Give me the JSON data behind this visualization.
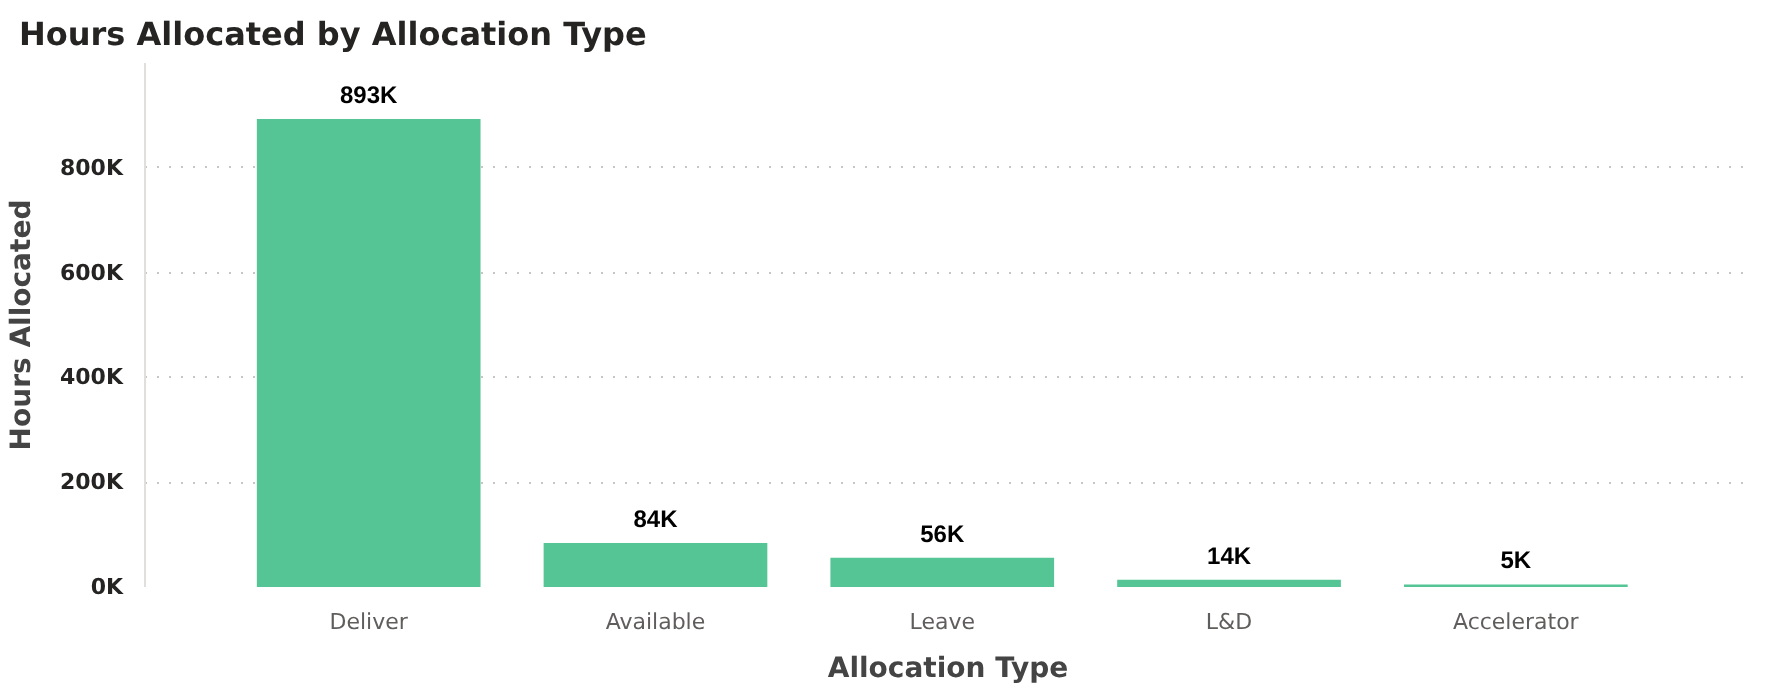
{
  "chart_data": {
    "type": "bar",
    "title": "Hours Allocated by Allocation Type",
    "xlabel": "Allocation Type",
    "ylabel": "Hours Allocated",
    "categories": [
      "Deliver",
      "Available",
      "Leave",
      "L&D",
      "Accelerator"
    ],
    "values": [
      893000,
      84000,
      56000,
      14000,
      5000
    ],
    "value_labels": [
      "893K",
      "84K",
      "56K",
      "14K",
      "5K"
    ],
    "color": "#55c595",
    "ylim": [
      0,
      1000000
    ],
    "yticks": [
      {
        "value": 0,
        "label": "0K"
      },
      {
        "value": 200000,
        "label": "200K"
      },
      {
        "value": 400000,
        "label": "400K"
      },
      {
        "value": 600000,
        "label": "600K"
      },
      {
        "value": 800000,
        "label": "800K"
      }
    ],
    "grid": "y"
  }
}
